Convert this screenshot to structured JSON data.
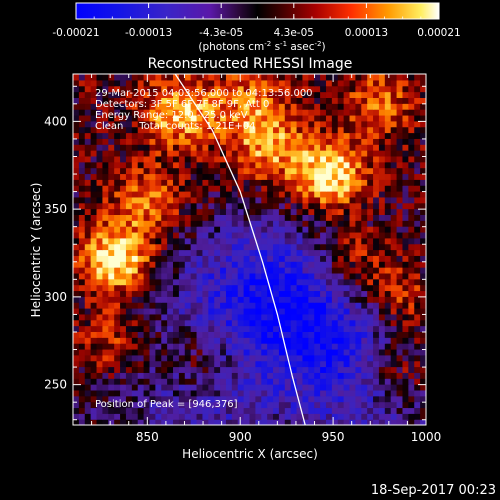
{
  "chart_data": {
    "type": "heatmap",
    "title": "Reconstructed RHESSI Image",
    "xlabel": "Heliocentric X (arcsec)",
    "ylabel": "Heliocentric Y (arcsec)",
    "xlim": [
      810,
      1000
    ],
    "ylim": [
      227,
      427
    ],
    "x_ticks": [
      850,
      900,
      950,
      1000
    ],
    "y_ticks": [
      250,
      300,
      350,
      400
    ],
    "colorbar": {
      "range": [
        -0.00021,
        0.00021
      ],
      "tick_labels": [
        "-0.00021",
        "-0.00013",
        "-4.3e-05",
        "4.3e-05",
        "0.00013",
        "0.00021"
      ],
      "unit_parts": [
        "(photons cm",
        "-2",
        " s",
        "-1",
        " asec",
        "-2",
        ")"
      ]
    },
    "annotations": [
      "29-Mar-2015 04:03:56.000 to 04:13:56.000",
      "Detectors: 3F 5F 6F 7F 8F 9F, Att 0",
      "Energy Range: 12.0 - 25.0 keV",
      "Clean     Total counts: 1.21E+04"
    ],
    "peak_label": "Position of Peak = [946,376]",
    "peak": [
      946,
      376
    ],
    "hot_spots": [
      {
        "x": 833,
        "y": 322,
        "intensity": 1.0
      },
      {
        "x": 948,
        "y": 370,
        "intensity": 0.95
      },
      {
        "x": 868,
        "y": 405,
        "intensity": 0.75
      },
      {
        "x": 915,
        "y": 385,
        "intensity": 0.6
      },
      {
        "x": 850,
        "y": 355,
        "intensity": 0.55
      },
      {
        "x": 985,
        "y": 300,
        "intensity": 0.55
      },
      {
        "x": 960,
        "y": 320,
        "intensity": 0.5
      },
      {
        "x": 880,
        "y": 265,
        "intensity": 0.45
      },
      {
        "x": 985,
        "y": 260,
        "intensity": 0.5
      },
      {
        "x": 830,
        "y": 275,
        "intensity": 0.45
      },
      {
        "x": 975,
        "y": 410,
        "intensity": 0.45
      },
      {
        "x": 905,
        "y": 410,
        "intensity": 0.45
      }
    ],
    "cold_spots": [
      {
        "x": 900,
        "y": 305,
        "intensity": 0.9
      },
      {
        "x": 950,
        "y": 275,
        "intensity": 0.75
      },
      {
        "x": 880,
        "y": 245,
        "intensity": 0.6
      },
      {
        "x": 930,
        "y": 300,
        "intensity": 0.7
      },
      {
        "x": 965,
        "y": 250,
        "intensity": 0.5
      }
    ],
    "limb_curve": [
      [
        865,
        427
      ],
      [
        885,
        395
      ],
      [
        900,
        360
      ],
      [
        912,
        320
      ],
      [
        920,
        290
      ],
      [
        928,
        255
      ],
      [
        935,
        227
      ]
    ],
    "grid": false
  },
  "footer": {
    "date": "18-Sep-2017 00:23"
  },
  "colors": {
    "background": "#000000",
    "foreground": "#ffffff"
  }
}
